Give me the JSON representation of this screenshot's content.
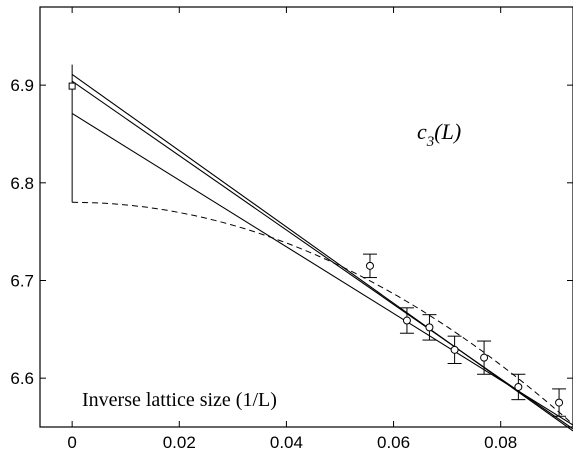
{
  "chart_data": {
    "type": "scatter",
    "title": "",
    "xlabel": "Inverse lattice size (1/L)",
    "ylabel": "",
    "curve_label": {
      "main": "c",
      "sub": "3",
      "tail": "(L)"
    },
    "xlim": [
      -0.006,
      0.0935
    ],
    "ylim": [
      6.55,
      6.98
    ],
    "x_ticks": [
      "0",
      "0.02",
      "0.04",
      "0.06",
      "0.08"
    ],
    "x_tick_values": [
      0,
      0.02,
      0.04,
      0.06,
      0.08
    ],
    "y_ticks": [
      "6.6",
      "6.7",
      "6.8",
      "6.9"
    ],
    "y_tick_values": [
      6.6,
      6.7,
      6.8,
      6.9
    ],
    "grid": false,
    "series": [
      {
        "marker": "circle",
        "x": [
          0.0556,
          0.0625,
          0.0667,
          0.0714,
          0.0769,
          0.0833,
          0.0909
        ],
        "y": [
          6.715,
          6.659,
          6.652,
          6.629,
          6.621,
          6.591,
          6.575
        ],
        "err": [
          0.012,
          0.013,
          0.013,
          0.014,
          0.017,
          0.013,
          0.014
        ]
      },
      {
        "marker": "square",
        "x": [
          0
        ],
        "y": [
          6.899
        ]
      }
    ],
    "fit_lines": [
      {
        "x": [
          0,
          0.0935
        ],
        "y": [
          6.911,
          6.546
        ]
      },
      {
        "x": [
          0,
          0.0935
        ],
        "y": [
          6.904,
          6.548
        ]
      },
      {
        "x": [
          0,
          0.0935
        ],
        "y": [
          6.871,
          6.552
        ]
      }
    ],
    "dashed_curve": {
      "x0": 0,
      "y0": 6.78,
      "a": -26.0
    },
    "vertical_band": {
      "x": 0,
      "y": [
        6.78,
        6.921
      ]
    }
  }
}
